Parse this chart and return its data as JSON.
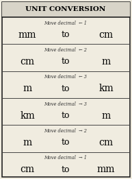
{
  "title": "Unit Conversion",
  "rows": [
    {
      "instruction": "Move decimal",
      "arrow": "← 1",
      "from": "mm",
      "to": "to",
      "result": "cm"
    },
    {
      "instruction": "Move decimal",
      "arrow": "← 2",
      "from": "cm",
      "to": "to",
      "result": "m"
    },
    {
      "instruction": "Move decimal",
      "arrow": "← 3",
      "from": "m",
      "to": "to",
      "result": "km"
    },
    {
      "instruction": "Move decimal",
      "arrow": "→ 3",
      "from": "km",
      "to": "to",
      "result": "m"
    },
    {
      "instruction": "Move decimal",
      "arrow": "→ 2",
      "from": "m",
      "to": "to",
      "result": "cm"
    },
    {
      "instruction": "Move decimal",
      "arrow": "→ 1",
      "from": "cm",
      "to": "to",
      "result": "mm"
    }
  ],
  "bg_color": "#f0ece0",
  "border_color": "#222222",
  "title_bg": "#d8d4c8",
  "line_color": "#444444",
  "title_fontsize": 7.5,
  "instruction_fontsize": 4.8,
  "unit_fontsize": 10,
  "to_fontsize": 9
}
